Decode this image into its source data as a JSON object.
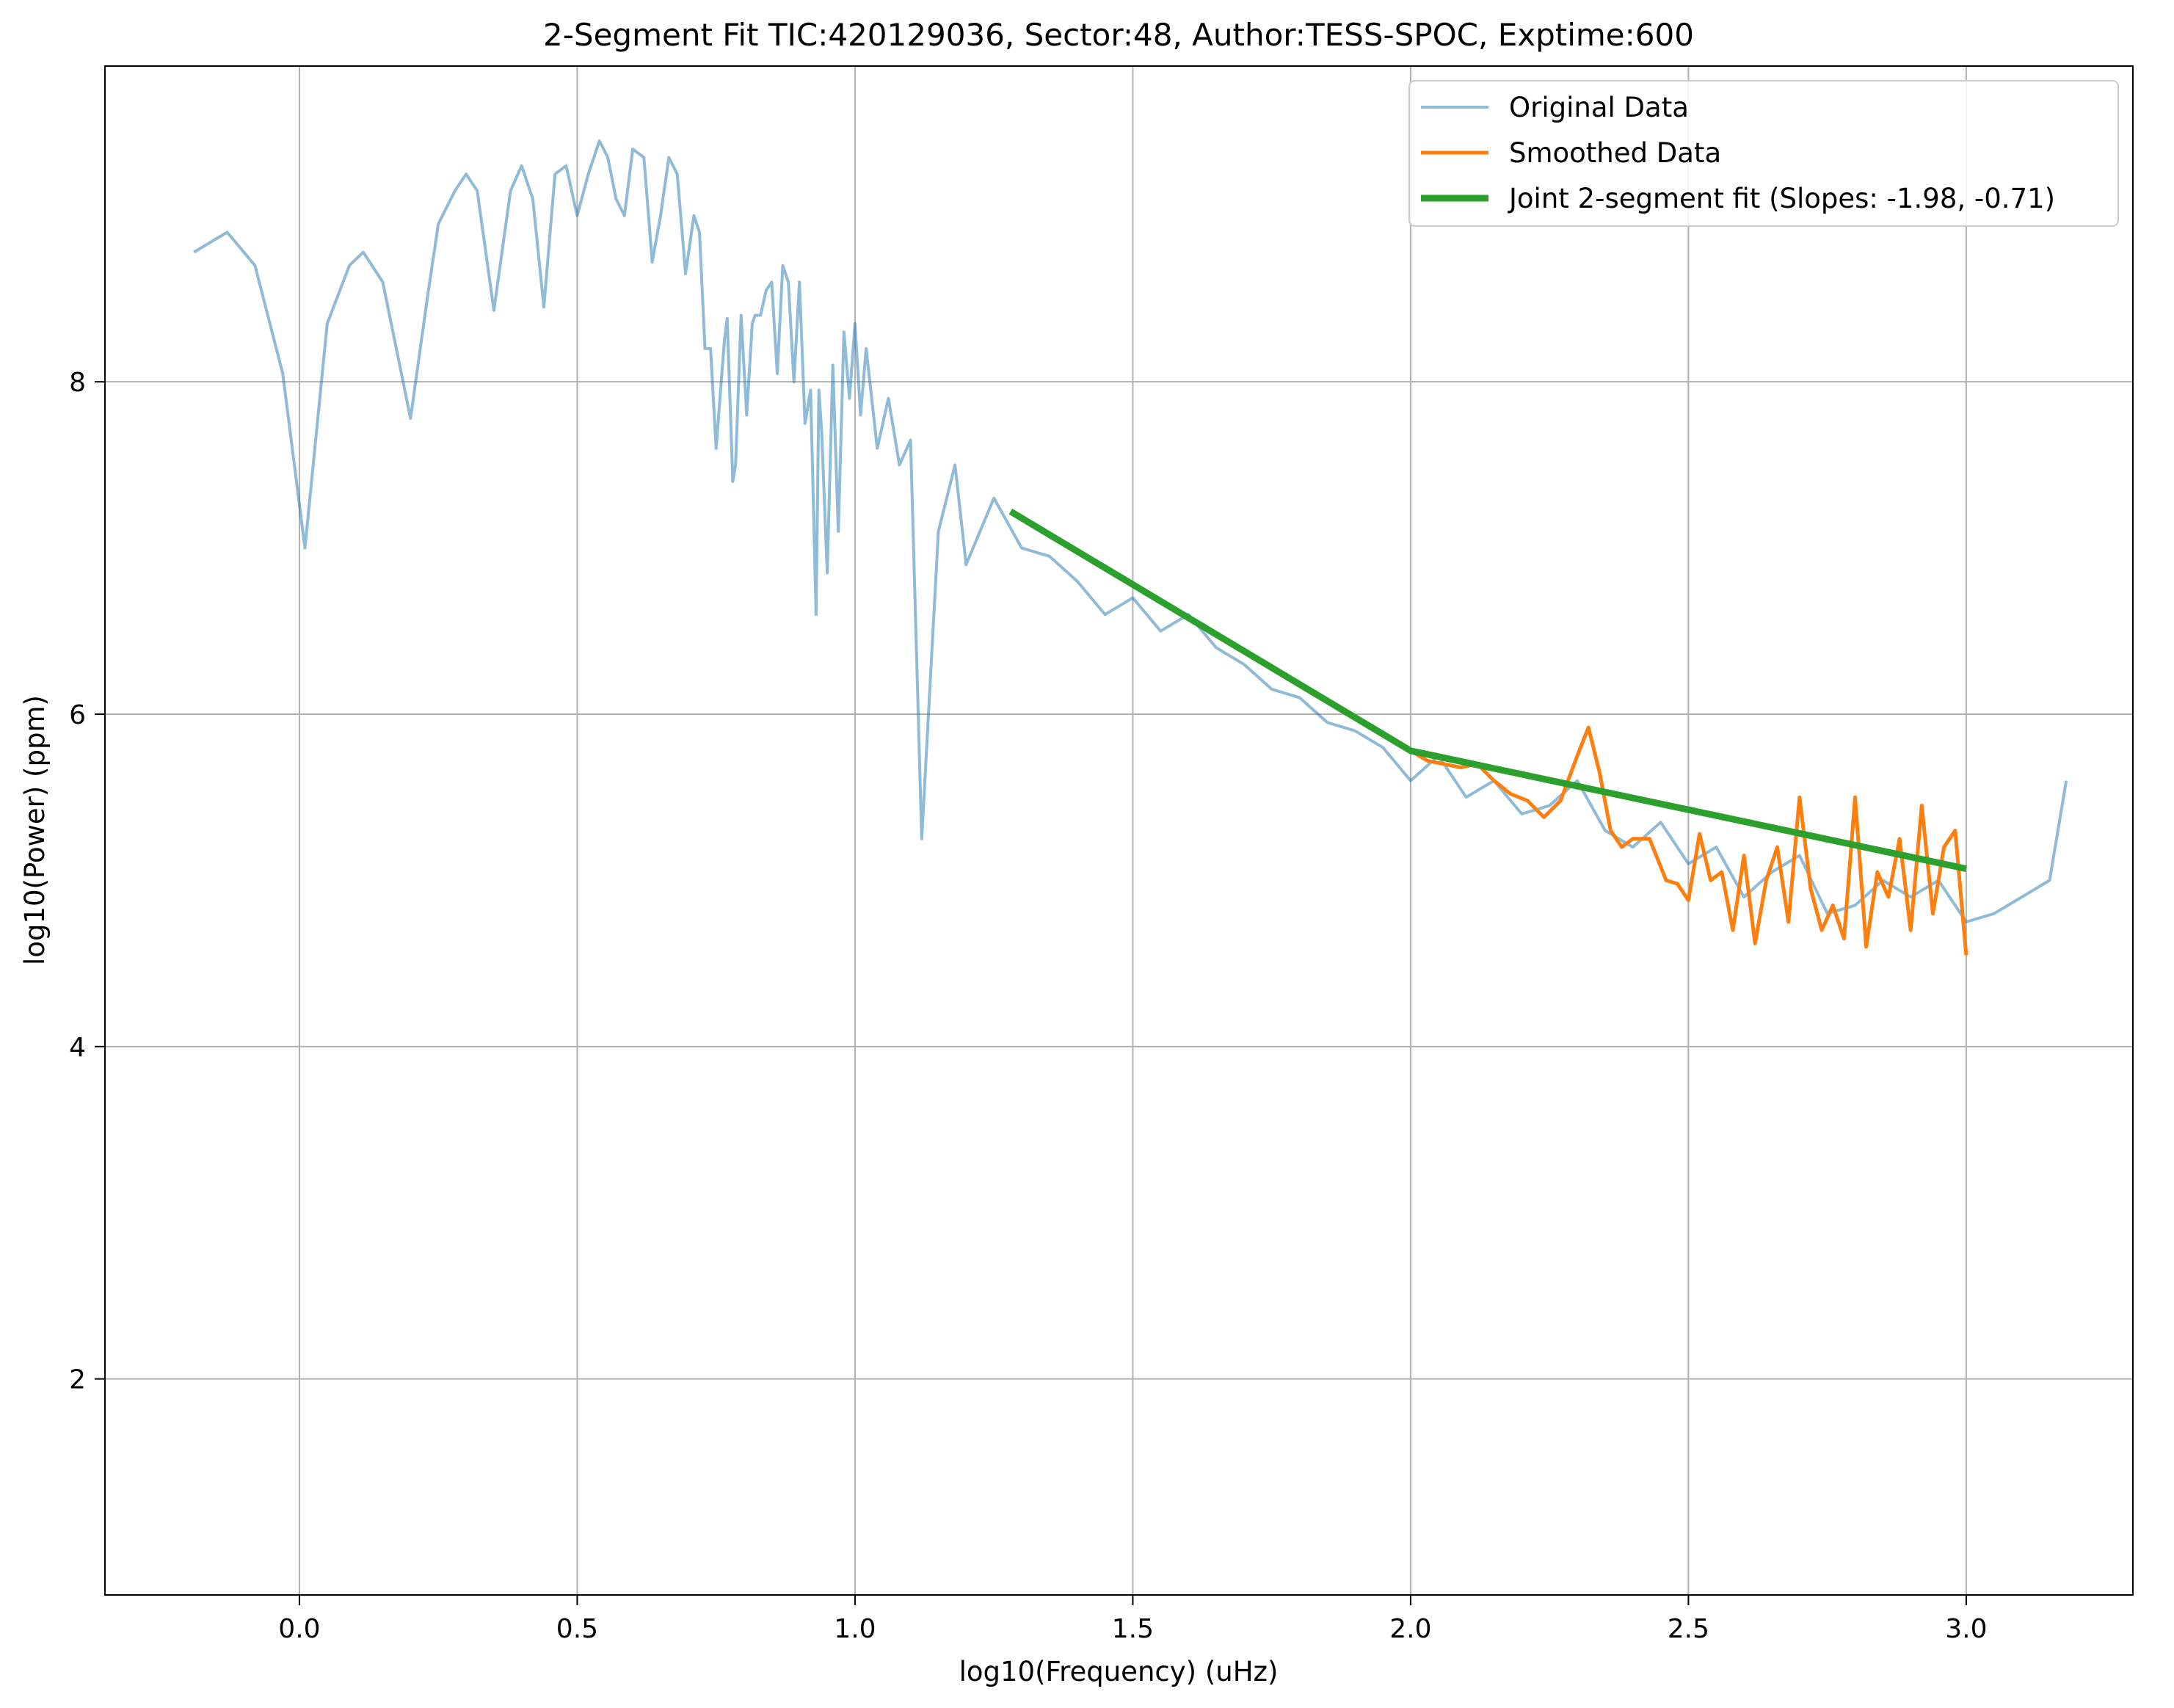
{
  "chart_data": {
    "type": "line",
    "title": "2-Segment Fit TIC:420129036, Sector:48, Author:TESS-SPOC, Exptime:600",
    "xlabel": "log10(Frequency) (uHz)",
    "ylabel": "log10(Power) (ppm)",
    "xlim": [
      -0.35,
      3.3
    ],
    "ylim": [
      0.7,
      9.9
    ],
    "xticks": [
      0.0,
      0.5,
      1.0,
      1.5,
      2.0,
      2.5,
      3.0
    ],
    "xtick_labels": [
      "0.0",
      "0.5",
      "1.0",
      "1.5",
      "2.0",
      "2.5",
      "3.0"
    ],
    "yticks": [
      2,
      4,
      6,
      8
    ],
    "ytick_labels": [
      "2",
      "4",
      "6",
      "8"
    ],
    "grid": true,
    "legend_position": "top-right",
    "colors": {
      "original": "#1f77b4",
      "smoothed": "#ff7f0e",
      "fit": "#2ca02c",
      "grid": "#b0b0b0",
      "axes": "#000000"
    },
    "series": [
      {
        "name": "Original Data",
        "opacity": 0.5,
        "x": [
          -0.19,
          -0.13,
          -0.08,
          -0.03,
          0.01,
          0.05,
          0.09,
          0.115,
          0.15,
          0.2,
          0.23,
          0.25,
          0.28,
          0.3,
          0.32,
          0.35,
          0.38,
          0.4,
          0.42,
          0.44,
          0.46,
          0.48,
          0.5,
          0.52,
          0.54,
          0.555,
          0.57,
          0.585,
          0.6,
          0.62,
          0.635,
          0.65,
          0.665,
          0.68,
          0.695,
          0.71,
          0.72,
          0.73,
          0.74,
          0.75,
          0.765,
          0.77,
          0.78,
          0.785,
          0.795,
          0.805,
          0.815,
          0.82,
          0.83,
          0.84,
          0.85,
          0.86,
          0.87,
          0.88,
          0.89,
          0.9,
          0.91,
          0.92,
          0.93,
          0.935,
          0.94,
          0.95,
          0.96,
          0.97,
          0.98,
          0.99,
          1.0,
          1.01,
          1.02,
          1.04,
          1.06,
          1.08,
          1.1,
          1.12,
          1.15,
          1.18,
          1.2,
          1.25,
          1.3,
          1.35,
          1.4,
          1.45,
          1.5,
          1.55,
          1.6,
          1.65,
          1.7,
          1.75,
          1.8,
          1.85,
          1.9,
          1.95,
          2.0,
          2.05,
          2.1,
          2.15,
          2.2,
          2.25,
          2.3,
          2.35,
          2.4,
          2.45,
          2.5,
          2.55,
          2.6,
          2.65,
          2.7,
          2.75,
          2.8,
          2.85,
          2.9,
          2.95,
          3.0,
          3.05,
          3.1,
          3.15,
          3.18
        ],
        "y": [
          8.78,
          8.9,
          8.7,
          8.05,
          7.0,
          8.35,
          8.7,
          8.78,
          8.6,
          7.78,
          8.5,
          8.95,
          9.15,
          9.25,
          9.15,
          8.43,
          9.15,
          9.3,
          9.1,
          8.45,
          9.25,
          9.3,
          9.0,
          9.25,
          9.45,
          9.35,
          9.1,
          9.0,
          9.4,
          9.35,
          8.72,
          9.0,
          9.35,
          9.25,
          8.65,
          9.0,
          8.9,
          8.2,
          8.2,
          7.6,
          8.25,
          8.38,
          7.4,
          7.5,
          8.4,
          7.8,
          8.35,
          8.4,
          8.4,
          8.55,
          8.6,
          8.05,
          8.7,
          8.6,
          8.0,
          8.6,
          7.75,
          7.95,
          6.6,
          7.95,
          7.7,
          6.85,
          8.1,
          7.1,
          8.3,
          7.9,
          8.35,
          7.8,
          8.2,
          7.6,
          7.9,
          7.5,
          7.65,
          5.25,
          7.1,
          7.5,
          6.9,
          7.3,
          7.0,
          6.95,
          6.8,
          6.6,
          6.7,
          6.5,
          6.6,
          6.4,
          6.3,
          6.15,
          6.1,
          5.95,
          5.9,
          5.8,
          5.6,
          5.75,
          5.5,
          5.6,
          5.4,
          5.45,
          5.6,
          5.3,
          5.2,
          5.35,
          5.1,
          5.2,
          4.9,
          5.05,
          5.15,
          4.8,
          4.85,
          5.0,
          4.9,
          5.0,
          4.75,
          4.8,
          4.9,
          5.0,
          5.6
        ]
      },
      {
        "name": "Smoothed Data",
        "x": [
          2.0,
          2.03,
          2.06,
          2.09,
          2.12,
          2.15,
          2.18,
          2.21,
          2.24,
          2.27,
          2.3,
          2.32,
          2.34,
          2.36,
          2.38,
          2.4,
          2.43,
          2.46,
          2.48,
          2.5,
          2.52,
          2.54,
          2.56,
          2.58,
          2.6,
          2.62,
          2.64,
          2.66,
          2.68,
          2.7,
          2.72,
          2.74,
          2.76,
          2.78,
          2.8,
          2.82,
          2.84,
          2.86,
          2.88,
          2.9,
          2.92,
          2.94,
          2.96,
          2.98,
          3.0
        ],
        "y": [
          5.78,
          5.72,
          5.7,
          5.68,
          5.7,
          5.6,
          5.52,
          5.48,
          5.38,
          5.48,
          5.75,
          5.92,
          5.65,
          5.3,
          5.2,
          5.25,
          5.25,
          5.0,
          4.98,
          4.88,
          5.28,
          5.0,
          5.05,
          4.7,
          5.15,
          4.62,
          5.0,
          5.2,
          4.75,
          5.5,
          4.95,
          4.7,
          4.85,
          4.65,
          5.5,
          4.6,
          5.05,
          4.9,
          5.25,
          4.7,
          5.45,
          4.8,
          5.2,
          5.3,
          4.55
        ]
      },
      {
        "name": "Joint 2-segment fit (Slopes: -1.98, -0.71)",
        "x": [
          1.28,
          2.0,
          3.0
        ],
        "y": [
          7.22,
          5.78,
          5.07
        ]
      }
    ]
  }
}
